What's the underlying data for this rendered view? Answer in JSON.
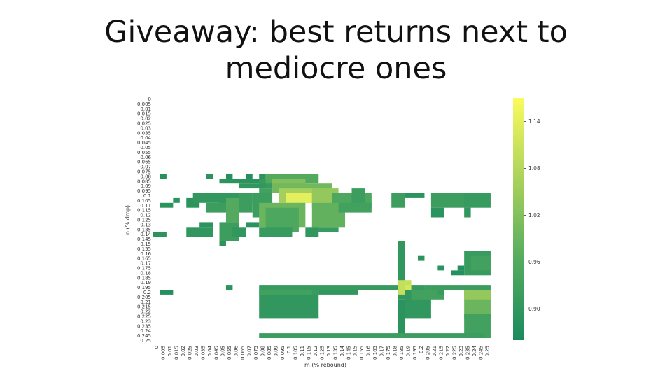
{
  "slide": {
    "title_line1": "Giveaway: best returns next to",
    "title_line2": "mediocre ones"
  },
  "colors": {
    "low": "#1e8c5e",
    "mid": "#7ac05f",
    "high": "#f7f75a",
    "background": "#ffffff"
  },
  "chart_data": {
    "type": "heatmap",
    "xlabel": "m (% rebound)",
    "ylabel": "n (% drop)",
    "x_ticks": [
      "0",
      "0.005",
      "0.01",
      "0.015",
      "0.02",
      "0.025",
      "0.03",
      "0.035",
      "0.04",
      "0.045",
      "0.05",
      "0.055",
      "0.06",
      "0.065",
      "0.07",
      "0.075",
      "0.08",
      "0.085",
      "0.09",
      "0.095",
      "0.1",
      "0.105",
      "0.11",
      "0.115",
      "0.12",
      "0.125",
      "0.13",
      "0.135",
      "0.14",
      "0.145",
      "0.15",
      "0.155",
      "0.16",
      "0.165",
      "0.17",
      "0.175",
      "0.18",
      "0.185",
      "0.19",
      "0.195",
      "0.2",
      "0.205",
      "0.21",
      "0.215",
      "0.22",
      "0.225",
      "0.23",
      "0.235",
      "0.24",
      "0.245",
      "0.25"
    ],
    "y_ticks": [
      "0",
      "0.005",
      "0.01",
      "0.015",
      "0.02",
      "0.025",
      "0.03",
      "0.035",
      "0.04",
      "0.045",
      "0.05",
      "0.055",
      "0.06",
      "0.065",
      "0.07",
      "0.075",
      "0.08",
      "0.085",
      "0.09",
      "0.095",
      "0.1",
      "0.105",
      "0.11",
      "0.115",
      "0.12",
      "0.125",
      "0.13",
      "0.135",
      "0.14",
      "0.145",
      "0.15",
      "0.155",
      "0.16",
      "0.165",
      "0.17",
      "0.175",
      "0.18",
      "0.185",
      "0.19",
      "0.195",
      "0.2",
      "0.205",
      "0.21",
      "0.215",
      "0.22",
      "0.225",
      "0.23",
      "0.235",
      "0.24",
      "0.245",
      "0.25"
    ],
    "colorbar": {
      "vmin": 0.86,
      "vmax": 1.17,
      "ticks": [
        "0.90",
        "0.96",
        "1.02",
        "1.08",
        "1.14"
      ]
    },
    "cells": [
      [
        16,
        1,
        0.89
      ],
      [
        27,
        1,
        0.88
      ],
      [
        29,
        1,
        0.88
      ],
      [
        31,
        1,
        0.89
      ],
      [
        36,
        1,
        0.95
      ],
      [
        37,
        1,
        0.94
      ],
      [
        41,
        1,
        0.88
      ],
      [
        43,
        1,
        0.88
      ],
      [
        45,
        1,
        0.87
      ],
      [
        0,
        16,
        0.89
      ],
      [
        1,
        19,
        0.89
      ],
      [
        2,
        19,
        0.9
      ],
      [
        8,
        19,
        0.88
      ],
      [
        10,
        19,
        0.88
      ],
      [
        11,
        19,
        0.89
      ],
      [
        14,
        19,
        0.9
      ],
      [
        15,
        19,
        0.9
      ],
      [
        16,
        19,
        0.91
      ],
      [
        18,
        19,
        0.89
      ],
      [
        19,
        19,
        0.91
      ],
      [
        20,
        19,
        0.92
      ],
      [
        21,
        19,
        0.92
      ],
      [
        22,
        19,
        0.92
      ],
      [
        23,
        19,
        0.91
      ],
      [
        24,
        19,
        0.9
      ],
      [
        25,
        19,
        0.9
      ],
      [
        26,
        19,
        0.9
      ],
      [
        27,
        19,
        0.9
      ],
      [
        28,
        19,
        0.91
      ],
      [
        30,
        19,
        0.9
      ],
      [
        31,
        19,
        0.89
      ],
      [
        32,
        19,
        0.89
      ],
      [
        33,
        19,
        0.89
      ],
      [
        34,
        19,
        0.89
      ],
      [
        35,
        19,
        0.89
      ],
      [
        38,
        19,
        0.97
      ],
      [
        39,
        19,
        0.96
      ],
      [
        40,
        19,
        0.95
      ],
      [
        41,
        19,
        0.94
      ],
      [
        42,
        19,
        0.93
      ],
      [
        43,
        19,
        0.92
      ],
      [
        44,
        19,
        0.91
      ],
      [
        45,
        19,
        1.1
      ],
      [
        46,
        19,
        1.06
      ],
      [
        47,
        19,
        0.94
      ],
      [
        48,
        19,
        0.93
      ],
      [
        49,
        19,
        0.92
      ],
      [
        50,
        19,
        0.91
      ],
      [
        51,
        19,
        0.9
      ],
      [
        52,
        19,
        0.9
      ]
    ],
    "blocks": [
      [
        21,
        24,
        16,
        29,
        0.88
      ],
      [
        25,
        26,
        16,
        29,
        0.89
      ],
      [
        29,
        30,
        16,
        29,
        0.89
      ],
      [
        33,
        35,
        16,
        29,
        0.9
      ],
      [
        16,
        19,
        19,
        29,
        0.9
      ],
      [
        19,
        21,
        19,
        29,
        0.91
      ],
      [
        22,
        25,
        19,
        29,
        0.92
      ],
      [
        23,
        32,
        19,
        29,
        0.9
      ],
      [
        25,
        28,
        19,
        24,
        0.92
      ],
      [
        26,
        28,
        22,
        24,
        0.93
      ],
      [
        31,
        32,
        21,
        24,
        0.89
      ],
      [
        36,
        39,
        21,
        29,
        0.91
      ],
      [
        40,
        44,
        19,
        29,
        0.9
      ],
      [
        45,
        52,
        19,
        29,
        0.91
      ],
      [
        48,
        51,
        19,
        29,
        0.93
      ],
      [
        16,
        18,
        16,
        21,
        0.89
      ],
      [
        19,
        23,
        17,
        22,
        0.92
      ],
      [
        21,
        23,
        17,
        21,
        0.95
      ],
      [
        24,
        25,
        18,
        22,
        0.91
      ],
      [
        26,
        27,
        18,
        22,
        0.9
      ],
      [
        17,
        19,
        18,
        21,
        0.93
      ],
      [
        16,
        22,
        21,
        30,
        0.9
      ],
      [
        30,
        32,
        16,
        22,
        0.89
      ],
      [
        33,
        35,
        17,
        21,
        0.89
      ]
    ]
  }
}
